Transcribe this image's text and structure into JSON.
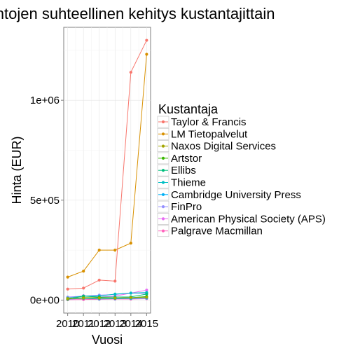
{
  "chart_data": {
    "type": "line",
    "title": "Hintojen suhteellinen kehitys kustantajittain",
    "xlabel": "Vuosi",
    "ylabel": "Hinta (EUR)",
    "x": [
      2010,
      2011,
      2012,
      2013,
      2014,
      2015
    ],
    "x_ticks": [
      "2010",
      "2011",
      "2012",
      "2013",
      "2014",
      "2015"
    ],
    "y_ticks": [
      {
        "value": 0,
        "label": "0e+00"
      },
      {
        "value": 500000,
        "label": "5e+05"
      },
      {
        "value": 1000000,
        "label": "1e+06"
      }
    ],
    "xlim": [
      2009.75,
      2015.25
    ],
    "ylim": [
      -65000,
      1365000
    ],
    "grid": true,
    "legend_title": "Kustantaja",
    "legend_position": "right",
    "series": [
      {
        "name": "Taylor & Francis",
        "color": "#F8766D",
        "values": [
          55000,
          60000,
          100000,
          95000,
          1140000,
          1300000
        ]
      },
      {
        "name": "LM Tietopalvelut",
        "color": "#D89000",
        "values": [
          115000,
          145000,
          250000,
          250000,
          285000,
          1230000
        ]
      },
      {
        "name": "Naxos Digital Services",
        "color": "#A3A500",
        "values": [
          8000,
          10000,
          10000,
          10000,
          12000,
          14000
        ]
      },
      {
        "name": "Artstor",
        "color": "#39B600",
        "values": [
          6000,
          12000,
          12000,
          10000,
          12000,
          18000
        ]
      },
      {
        "name": "Ellibs",
        "color": "#00BF7D",
        "values": [
          4000,
          20000,
          15000,
          15000,
          16000,
          30000
        ]
      },
      {
        "name": "Thieme",
        "color": "#00BFC4",
        "values": [
          10000,
          20000,
          20000,
          30000,
          35000,
          38000
        ]
      },
      {
        "name": "Cambridge University Press",
        "color": "#00B0F6",
        "values": [
          5000,
          8000,
          6000,
          7000,
          8000,
          10000
        ]
      },
      {
        "name": "FinPro",
        "color": "#9590FF",
        "values": [
          15000,
          20000,
          25000,
          28000,
          35000,
          33000
        ]
      },
      {
        "name": "American Physical Society (APS)",
        "color": "#E76BF3",
        "values": [
          3000,
          22000,
          15000,
          20000,
          35000,
          50000
        ]
      },
      {
        "name": "Palgrave Macmillan",
        "color": "#FF62BC",
        "values": [
          2000,
          3000,
          4000,
          5000,
          5000,
          7000
        ]
      }
    ]
  }
}
